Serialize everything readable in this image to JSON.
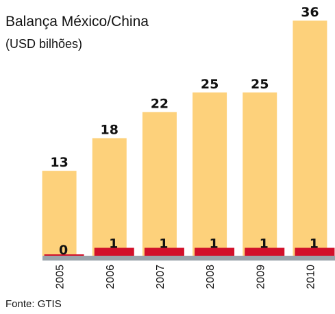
{
  "chart_data": {
    "type": "bar",
    "title": "Balança México/China",
    "subtitle": "(USD bilhões)",
    "categories": [
      "2005",
      "2006",
      "2007",
      "2008",
      "2009",
      "2010"
    ],
    "series": [
      {
        "color": "#fdd17b",
        "values": [
          13,
          18,
          22,
          25,
          25,
          36
        ]
      },
      {
        "color": "#d2102a",
        "values": [
          0,
          1,
          1,
          1,
          1,
          1
        ]
      }
    ],
    "ylim": [
      0,
      36
    ],
    "source": "Fonte: GTIS"
  }
}
